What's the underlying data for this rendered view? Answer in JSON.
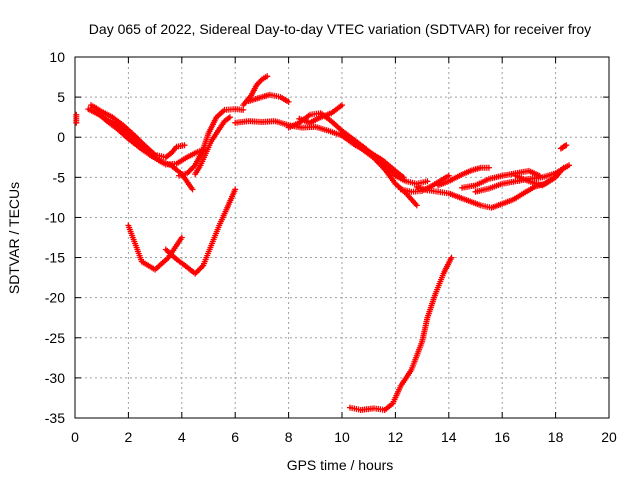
{
  "chart_data": {
    "type": "scatter",
    "title": "Day 065 of 2022, Sidereal Day-to-day VTEC variation (SDTVAR) for receiver froy",
    "xlabel": "GPS time / hours",
    "ylabel": "SDTVAR / TECUs",
    "xlim": [
      0,
      20
    ],
    "ylim": [
      -35,
      10
    ],
    "xticks": [
      "0",
      "2",
      "4",
      "6",
      "8",
      "10",
      "12",
      "14",
      "16",
      "18",
      "20"
    ],
    "yticks": [
      "10",
      "5",
      "0",
      "-5",
      "-10",
      "-15",
      "-20",
      "-25",
      "-30",
      "-35"
    ],
    "grid": true,
    "marker_color": "#ff0000",
    "series": [
      {
        "name": "arc-1",
        "points": [
          [
            0.5,
            3.5
          ],
          [
            0.8,
            3.0
          ],
          [
            1.2,
            2.2
          ],
          [
            1.6,
            1.5
          ],
          [
            2.0,
            0.5
          ],
          [
            2.4,
            -0.8
          ],
          [
            2.8,
            -2.2
          ],
          [
            3.2,
            -3.0
          ],
          [
            3.6,
            -3.5
          ],
          [
            4.0,
            -4.6
          ],
          [
            4.4,
            -6.5
          ]
        ]
      },
      {
        "name": "arc-2",
        "points": [
          [
            0.6,
            4.0
          ],
          [
            1.0,
            3.2
          ],
          [
            1.4,
            2.5
          ],
          [
            1.8,
            1.5
          ],
          [
            2.2,
            0.3
          ],
          [
            2.6,
            -1.0
          ],
          [
            3.0,
            -2.2
          ],
          [
            3.4,
            -2.5
          ],
          [
            3.6,
            -2.0
          ],
          [
            3.8,
            -1.2
          ],
          [
            4.1,
            -1.0
          ]
        ]
      },
      {
        "name": "arc-3",
        "points": [
          [
            0.8,
            3.2
          ],
          [
            1.2,
            2.0
          ],
          [
            1.6,
            1.0
          ],
          [
            2.0,
            -0.2
          ],
          [
            2.5,
            -1.5
          ],
          [
            3.0,
            -2.6
          ],
          [
            3.4,
            -3.4
          ],
          [
            3.8,
            -3.3
          ],
          [
            4.2,
            -2.5
          ],
          [
            4.6,
            -1.8
          ],
          [
            4.9,
            -1.5
          ]
        ]
      },
      {
        "name": "arc-4",
        "points": [
          [
            3.9,
            -4.8
          ],
          [
            4.2,
            -4.5
          ],
          [
            4.5,
            -3.5
          ],
          [
            4.8,
            -1.5
          ],
          [
            5.0,
            0.5
          ],
          [
            5.3,
            2.5
          ],
          [
            5.6,
            3.4
          ],
          [
            6.0,
            3.5
          ],
          [
            6.3,
            3.4
          ]
        ]
      },
      {
        "name": "arc-5",
        "points": [
          [
            4.5,
            -4.6
          ],
          [
            4.7,
            -3.5
          ],
          [
            4.9,
            -2.0
          ],
          [
            5.1,
            -0.5
          ],
          [
            5.4,
            1.0
          ],
          [
            5.6,
            2.0
          ],
          [
            5.8,
            2.5
          ]
        ]
      },
      {
        "name": "arc-6",
        "points": [
          [
            6.0,
            1.8
          ],
          [
            6.5,
            2.0
          ],
          [
            7.0,
            1.9
          ],
          [
            7.5,
            2.0
          ],
          [
            8.0,
            1.5
          ],
          [
            8.5,
            1.2
          ],
          [
            9.0,
            1.3
          ],
          [
            9.5,
            0.8
          ],
          [
            10.0,
            0.2
          ],
          [
            10.5,
            -1.0
          ],
          [
            11.0,
            -1.8
          ],
          [
            11.5,
            -2.8
          ],
          [
            12.0,
            -4.2
          ],
          [
            12.3,
            -5.0
          ]
        ]
      },
      {
        "name": "arc-7",
        "points": [
          [
            6.3,
            4.0
          ],
          [
            6.6,
            5.2
          ],
          [
            6.8,
            6.5
          ],
          [
            7.0,
            7.2
          ],
          [
            7.2,
            7.6
          ]
        ]
      },
      {
        "name": "arc-8",
        "points": [
          [
            6.5,
            4.5
          ],
          [
            6.9,
            4.9
          ],
          [
            7.3,
            5.3
          ],
          [
            7.7,
            5.0
          ],
          [
            8.0,
            4.4
          ]
        ]
      },
      {
        "name": "arc-9",
        "points": [
          [
            8.0,
            1.2
          ],
          [
            8.4,
            1.8
          ],
          [
            8.8,
            2.8
          ],
          [
            9.2,
            3.0
          ],
          [
            9.6,
            2.0
          ],
          [
            10.0,
            0.8
          ],
          [
            10.4,
            -0.2
          ],
          [
            10.8,
            -1.2
          ],
          [
            11.2,
            -2.3
          ],
          [
            11.6,
            -3.5
          ],
          [
            12.0,
            -4.8
          ],
          [
            12.4,
            -5.5
          ],
          [
            12.8,
            -5.8
          ],
          [
            13.2,
            -5.5
          ]
        ]
      },
      {
        "name": "arc-10",
        "points": [
          [
            8.4,
            2.3
          ],
          [
            8.8,
            1.8
          ],
          [
            9.2,
            2.5
          ],
          [
            9.6,
            3.0
          ],
          [
            10.0,
            4.0
          ]
        ]
      },
      {
        "name": "arc-11",
        "points": [
          [
            10.0,
            0.5
          ],
          [
            10.4,
            -0.6
          ],
          [
            10.8,
            -1.6
          ],
          [
            11.2,
            -2.6
          ],
          [
            11.6,
            -4.0
          ],
          [
            12.0,
            -5.8
          ],
          [
            12.4,
            -7.0
          ],
          [
            12.8,
            -8.5
          ]
        ]
      },
      {
        "name": "arc-12",
        "points": [
          [
            12.2,
            -6.5
          ],
          [
            12.6,
            -6.8
          ],
          [
            13.0,
            -6.7
          ],
          [
            13.4,
            -6.0
          ],
          [
            13.8,
            -5.2
          ],
          [
            14.0,
            -4.8
          ]
        ]
      },
      {
        "name": "arc-13",
        "points": [
          [
            12.8,
            -6.2
          ],
          [
            13.2,
            -6.6
          ],
          [
            13.6,
            -6.8
          ],
          [
            14.0,
            -7.0
          ],
          [
            14.4,
            -7.5
          ],
          [
            14.8,
            -8.0
          ],
          [
            15.2,
            -8.5
          ],
          [
            15.6,
            -8.8
          ],
          [
            16.0,
            -8.3
          ],
          [
            16.4,
            -7.8
          ],
          [
            16.8,
            -7.0
          ],
          [
            17.2,
            -6.2
          ],
          [
            17.6,
            -5.8
          ],
          [
            18.0,
            -5.0
          ],
          [
            18.3,
            -3.8
          ]
        ]
      },
      {
        "name": "arc-14",
        "points": [
          [
            13.6,
            -6.0
          ],
          [
            14.0,
            -5.5
          ],
          [
            14.4,
            -4.8
          ],
          [
            14.8,
            -4.2
          ],
          [
            15.2,
            -3.8
          ],
          [
            15.5,
            -3.8
          ]
        ]
      },
      {
        "name": "arc-15",
        "points": [
          [
            14.5,
            -6.3
          ],
          [
            15.0,
            -6.0
          ],
          [
            15.5,
            -5.2
          ],
          [
            16.0,
            -4.8
          ],
          [
            16.5,
            -4.5
          ],
          [
            17.0,
            -4.2
          ],
          [
            17.4,
            -4.8
          ]
        ]
      },
      {
        "name": "arc-16",
        "points": [
          [
            15.0,
            -6.8
          ],
          [
            15.5,
            -6.4
          ],
          [
            16.0,
            -5.8
          ],
          [
            16.5,
            -5.5
          ],
          [
            17.0,
            -5.2
          ],
          [
            17.5,
            -5.0
          ],
          [
            18.0,
            -4.5
          ],
          [
            18.5,
            -3.5
          ]
        ]
      },
      {
        "name": "arc-17",
        "points": [
          [
            16.5,
            -4.8
          ],
          [
            17.0,
            -5.5
          ],
          [
            17.5,
            -6.0
          ],
          [
            18.0,
            -5.0
          ]
        ]
      },
      {
        "name": "arc-18",
        "points": [
          [
            18.2,
            -1.4
          ],
          [
            18.3,
            -1.2
          ],
          [
            18.4,
            -1.0
          ]
        ]
      },
      {
        "name": "arc-19",
        "points": [
          [
            3.4,
            -14.0
          ],
          [
            3.8,
            -15.2
          ],
          [
            4.2,
            -16.2
          ],
          [
            4.5,
            -17.0
          ],
          [
            4.8,
            -16.0
          ],
          [
            5.1,
            -13.5
          ],
          [
            5.4,
            -11.0
          ],
          [
            5.7,
            -8.8
          ],
          [
            6.0,
            -6.5
          ]
        ]
      },
      {
        "name": "arc-20",
        "points": [
          [
            10.3,
            -33.7
          ],
          [
            10.7,
            -34.0
          ],
          [
            11.2,
            -33.8
          ],
          [
            11.6,
            -34.0
          ],
          [
            11.9,
            -33.2
          ],
          [
            12.2,
            -31.0
          ],
          [
            12.6,
            -29.0
          ],
          [
            13.0,
            -25.5
          ],
          [
            13.2,
            -22.5
          ],
          [
            13.5,
            -19.5
          ],
          [
            13.8,
            -17.0
          ],
          [
            14.1,
            -15.0
          ]
        ]
      },
      {
        "name": "arc-21",
        "points": [
          [
            2.0,
            -11.0
          ],
          [
            2.5,
            -15.5
          ],
          [
            3.0,
            -16.5
          ],
          [
            3.5,
            -15.0
          ],
          [
            4.0,
            -12.5
          ]
        ]
      },
      {
        "name": "arc-22",
        "points": [
          [
            0.05,
            2.8
          ],
          [
            0.05,
            2.3
          ],
          [
            0.05,
            1.8
          ]
        ]
      }
    ]
  }
}
